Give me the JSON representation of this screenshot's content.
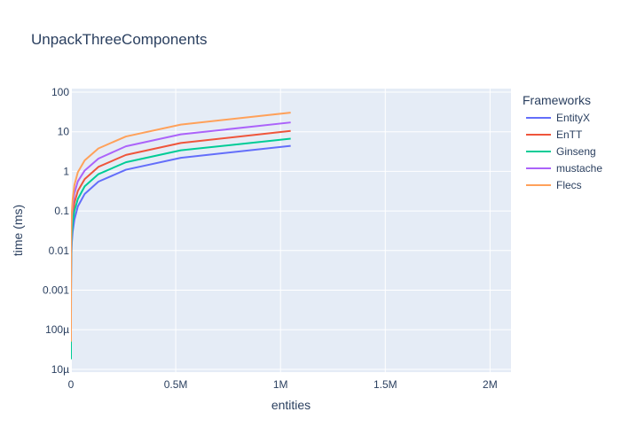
{
  "chart_data": {
    "type": "line",
    "title": "UnpackThreeComponents",
    "xlabel": "entities",
    "ylabel": "time (ms)",
    "xlim": [
      0,
      2100000
    ],
    "ylim_log": [
      -5.07,
      2.09
    ],
    "y_scale": "log",
    "grid": true,
    "legend_title": "Frameworks",
    "legend_position": "right",
    "x_ticks": [
      {
        "value": 0,
        "label": "0"
      },
      {
        "value": 500000,
        "label": "0.5M"
      },
      {
        "value": 1000000,
        "label": "1M"
      },
      {
        "value": 1500000,
        "label": "1.5M"
      },
      {
        "value": 2000000,
        "label": "2M"
      }
    ],
    "y_ticks": [
      {
        "value": 1e-05,
        "label": "10µ"
      },
      {
        "value": 0.0001,
        "label": "100µ"
      },
      {
        "value": 0.001,
        "label": "0.001"
      },
      {
        "value": 0.01,
        "label": "0.01"
      },
      {
        "value": 0.1,
        "label": "0.1"
      },
      {
        "value": 1,
        "label": "1"
      },
      {
        "value": 10,
        "label": "10"
      },
      {
        "value": 100,
        "label": "100"
      }
    ],
    "x": [
      1,
      2,
      4,
      8,
      16,
      32,
      64,
      128,
      256,
      512,
      1024,
      2048,
      4096,
      8192,
      16384,
      32768,
      65536,
      131072,
      262144,
      524288,
      1048576
    ],
    "series": [
      {
        "name": "EntityX",
        "color": "#636efa",
        "values": [
          4.5e-05,
          6e-05,
          8e-05,
          0.00011,
          0.00016,
          0.00025,
          0.0004,
          0.0007,
          0.0012,
          0.0022,
          0.004,
          0.008,
          0.016,
          0.03,
          0.06,
          0.13,
          0.27,
          0.55,
          1.1,
          2.2,
          4.4
        ]
      },
      {
        "name": "EnTT",
        "color": "#ef553b",
        "values": [
          4e-05,
          6e-05,
          9e-05,
          0.00014,
          0.00022,
          0.00038,
          0.0007,
          0.0013,
          0.0025,
          0.005,
          0.01,
          0.02,
          0.04,
          0.08,
          0.16,
          0.32,
          0.64,
          1.3,
          2.6,
          5.2,
          10.5
        ]
      },
      {
        "name": "Ginseng",
        "color": "#00cc96",
        "values": [
          1.8e-05,
          3e-05,
          5e-05,
          8e-05,
          0.00013,
          0.00022,
          0.0004,
          0.0008,
          0.0016,
          0.003,
          0.006,
          0.012,
          0.025,
          0.05,
          0.1,
          0.2,
          0.42,
          0.85,
          1.7,
          3.4,
          6.7
        ]
      },
      {
        "name": "mustache",
        "color": "#ab63fa",
        "values": [
          0.00014,
          0.0002,
          0.0003,
          0.00045,
          0.0007,
          0.0011,
          0.0018,
          0.003,
          0.005,
          0.009,
          0.018,
          0.035,
          0.07,
          0.14,
          0.28,
          0.56,
          1.05,
          2.1,
          4.3,
          8.6,
          17.2
        ]
      },
      {
        "name": "Flecs",
        "color": "#ffa15a",
        "values": [
          5e-05,
          7e-05,
          0.0001,
          0.00016,
          0.00028,
          0.0005,
          0.001,
          0.002,
          0.0045,
          0.009,
          0.02,
          0.04,
          0.09,
          0.2,
          0.45,
          0.95,
          1.9,
          3.8,
          7.6,
          15.2,
          30.5
        ]
      }
    ]
  }
}
